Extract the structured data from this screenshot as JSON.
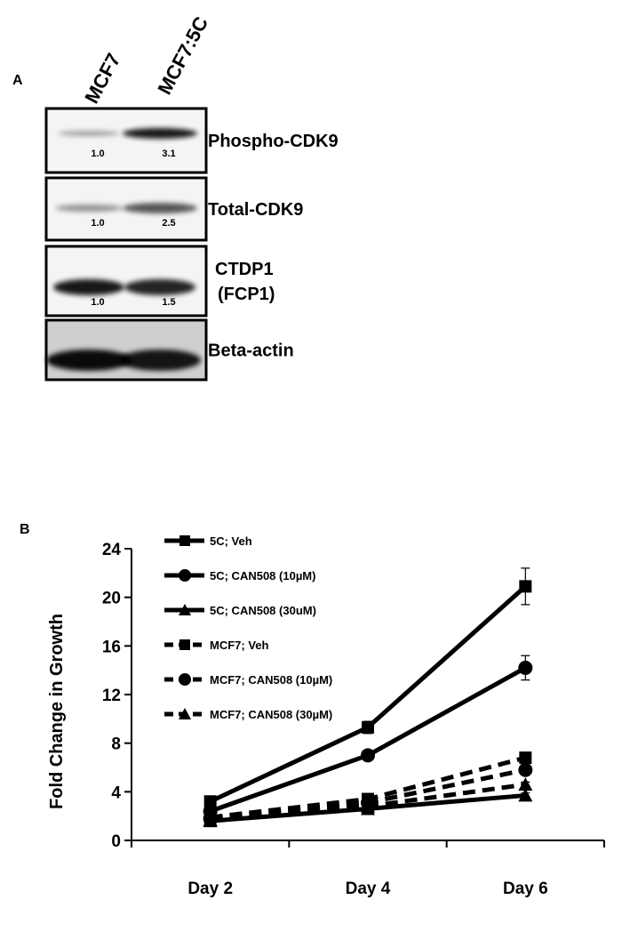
{
  "panel_a": {
    "label": "A",
    "columns": [
      "MCF7",
      "MCF7:5C"
    ],
    "blots": [
      {
        "label": [
          "Phospho-CDK9"
        ],
        "values": [
          "1.0",
          "3.1"
        ]
      },
      {
        "label": [
          "Total-CDK9"
        ],
        "values": [
          "1.0",
          "2.5"
        ]
      },
      {
        "label": [
          "CTDP1",
          "(FCP1)"
        ],
        "values": [
          "1.0",
          "1.5"
        ]
      },
      {
        "label": [
          "Beta-actin"
        ],
        "values": []
      }
    ]
  },
  "chart_data": {
    "type": "line",
    "panel_label": "B",
    "ylabel": "Fold Change in Growth",
    "categories": [
      "Day 2",
      "Day 4",
      "Day 6"
    ],
    "ylim": [
      0,
      24
    ],
    "yticks": [
      0,
      4,
      8,
      12,
      16,
      20,
      24
    ],
    "series": [
      {
        "name": "5C; Veh",
        "color": "#000000",
        "marker": "square",
        "dashed": false,
        "values": [
          3.2,
          9.3,
          20.9
        ],
        "errors": [
          0.2,
          0.5,
          1.5
        ]
      },
      {
        "name": "5C; CAN508 (10µM)",
        "color": "#000000",
        "marker": "circle",
        "dashed": false,
        "values": [
          2.4,
          7.0,
          14.2
        ],
        "errors": [
          0.2,
          0.2,
          1.0
        ]
      },
      {
        "name": "5C; CAN508 (30uM)",
        "color": "#000000",
        "marker": "triangle",
        "dashed": false,
        "values": [
          1.6,
          2.6,
          3.7
        ],
        "errors": [
          0.1,
          0.1,
          0.2
        ]
      },
      {
        "name": "MCF7; Veh",
        "color": "#000000",
        "marker": "square",
        "dashed": true,
        "values": [
          1.9,
          3.4,
          6.8
        ],
        "errors": [
          0.1,
          0.2,
          0.2
        ]
      },
      {
        "name": "MCF7; CAN508 (10µM)",
        "color": "#000000",
        "marker": "circle",
        "dashed": true,
        "values": [
          1.8,
          3.1,
          5.8
        ],
        "errors": [
          0.1,
          0.2,
          0.2
        ]
      },
      {
        "name": "MCF7; CAN508 (30µM)",
        "color": "#000000",
        "marker": "triangle",
        "dashed": true,
        "values": [
          1.7,
          2.8,
          4.6
        ],
        "errors": [
          0.1,
          0.1,
          0.2
        ]
      }
    ]
  }
}
